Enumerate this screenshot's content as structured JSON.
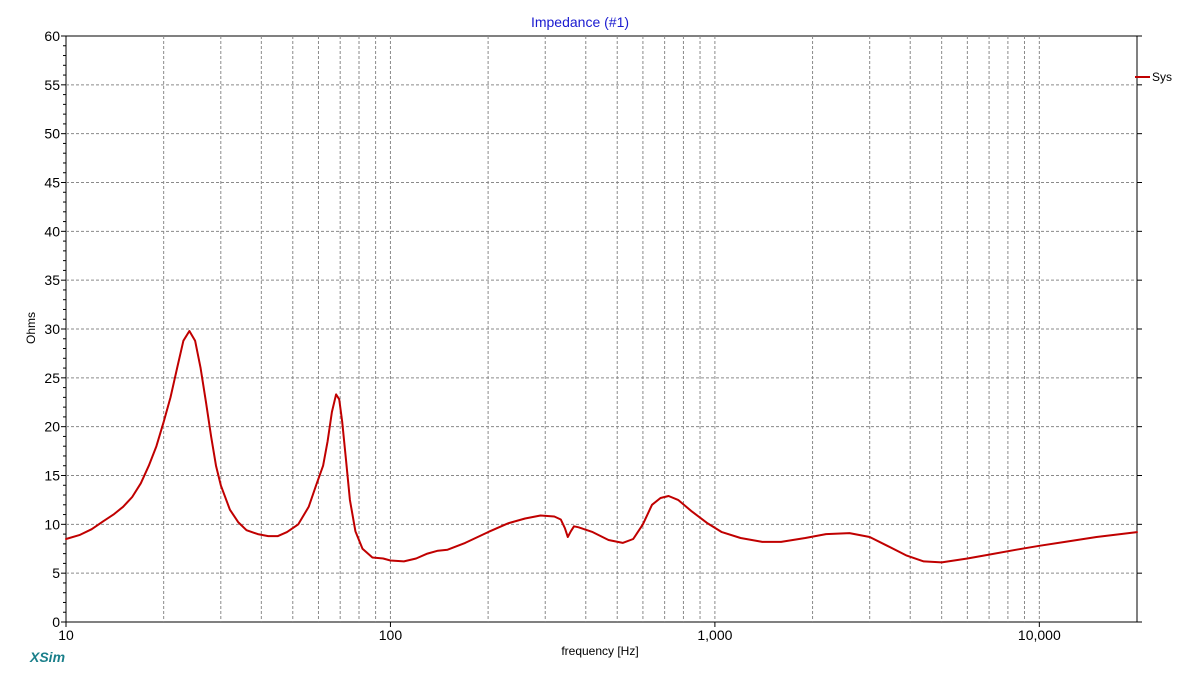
{
  "chart_data": {
    "type": "line",
    "title": "Impedance (#1)",
    "xlabel": "frequency [Hz]",
    "ylabel": "Ohms",
    "x_scale": "log",
    "xlim": [
      10,
      20000
    ],
    "ylim": [
      0,
      60
    ],
    "x_ticks": [
      {
        "value": 10,
        "label": "10"
      },
      {
        "value": 100,
        "label": "100"
      },
      {
        "value": 1000,
        "label": "1,000"
      },
      {
        "value": 10000,
        "label": "10,000"
      }
    ],
    "y_ticks": [
      {
        "value": 0,
        "label": "0"
      },
      {
        "value": 5,
        "label": "5"
      },
      {
        "value": 10,
        "label": "10"
      },
      {
        "value": 15,
        "label": "15"
      },
      {
        "value": 20,
        "label": "20"
      },
      {
        "value": 25,
        "label": "25"
      },
      {
        "value": 30,
        "label": "30"
      },
      {
        "value": 35,
        "label": "35"
      },
      {
        "value": 40,
        "label": "40"
      },
      {
        "value": 45,
        "label": "45"
      },
      {
        "value": 50,
        "label": "50"
      },
      {
        "value": 55,
        "label": "55"
      },
      {
        "value": 60,
        "label": "60"
      }
    ],
    "grid": true,
    "legend": {
      "position": "top-right"
    },
    "series": [
      {
        "name": "Sys",
        "color": "#c00000",
        "points": [
          [
            10,
            8.5
          ],
          [
            11,
            8.9
          ],
          [
            12,
            9.5
          ],
          [
            13,
            10.3
          ],
          [
            14,
            11.0
          ],
          [
            15,
            11.8
          ],
          [
            16,
            12.8
          ],
          [
            17,
            14.2
          ],
          [
            18,
            16.0
          ],
          [
            19,
            18.0
          ],
          [
            20,
            20.5
          ],
          [
            21,
            23.0
          ],
          [
            22,
            26.0
          ],
          [
            23,
            28.8
          ],
          [
            24,
            29.8
          ],
          [
            25,
            28.8
          ],
          [
            26,
            26.0
          ],
          [
            27,
            22.5
          ],
          [
            28,
            19.0
          ],
          [
            29,
            16.0
          ],
          [
            30,
            14.0
          ],
          [
            32,
            11.5
          ],
          [
            34,
            10.2
          ],
          [
            36,
            9.4
          ],
          [
            39,
            9.0
          ],
          [
            42,
            8.8
          ],
          [
            45,
            8.8
          ],
          [
            48,
            9.2
          ],
          [
            52,
            10.0
          ],
          [
            56,
            11.8
          ],
          [
            59,
            14.0
          ],
          [
            62,
            16.0
          ],
          [
            64,
            18.5
          ],
          [
            66,
            21.5
          ],
          [
            68,
            23.3
          ],
          [
            69.5,
            22.8
          ],
          [
            71,
            20.5
          ],
          [
            73,
            16.5
          ],
          [
            75,
            12.5
          ],
          [
            78,
            9.3
          ],
          [
            82,
            7.5
          ],
          [
            88,
            6.6
          ],
          [
            95,
            6.5
          ],
          [
            100,
            6.3
          ],
          [
            110,
            6.2
          ],
          [
            120,
            6.5
          ],
          [
            130,
            7.0
          ],
          [
            140,
            7.3
          ],
          [
            150,
            7.4
          ],
          [
            170,
            8.1
          ],
          [
            200,
            9.2
          ],
          [
            230,
            10.1
          ],
          [
            260,
            10.6
          ],
          [
            290,
            10.9
          ],
          [
            320,
            10.8
          ],
          [
            335,
            10.5
          ],
          [
            345,
            9.6
          ],
          [
            352,
            8.7
          ],
          [
            360,
            9.3
          ],
          [
            368,
            9.8
          ],
          [
            380,
            9.7
          ],
          [
            420,
            9.2
          ],
          [
            470,
            8.4
          ],
          [
            520,
            8.1
          ],
          [
            560,
            8.5
          ],
          [
            600,
            10.0
          ],
          [
            640,
            12.0
          ],
          [
            680,
            12.7
          ],
          [
            720,
            12.9
          ],
          [
            770,
            12.5
          ],
          [
            850,
            11.3
          ],
          [
            950,
            10.1
          ],
          [
            1050,
            9.2
          ],
          [
            1200,
            8.6
          ],
          [
            1400,
            8.2
          ],
          [
            1600,
            8.2
          ],
          [
            1900,
            8.6
          ],
          [
            2200,
            9.0
          ],
          [
            2600,
            9.1
          ],
          [
            3000,
            8.7
          ],
          [
            3400,
            7.8
          ],
          [
            3900,
            6.8
          ],
          [
            4400,
            6.2
          ],
          [
            5000,
            6.1
          ],
          [
            6000,
            6.5
          ],
          [
            7000,
            6.9
          ],
          [
            8500,
            7.4
          ],
          [
            10000,
            7.8
          ],
          [
            12000,
            8.2
          ],
          [
            15000,
            8.7
          ],
          [
            20000,
            9.2
          ]
        ]
      }
    ]
  },
  "branding": {
    "text": "XSim"
  }
}
